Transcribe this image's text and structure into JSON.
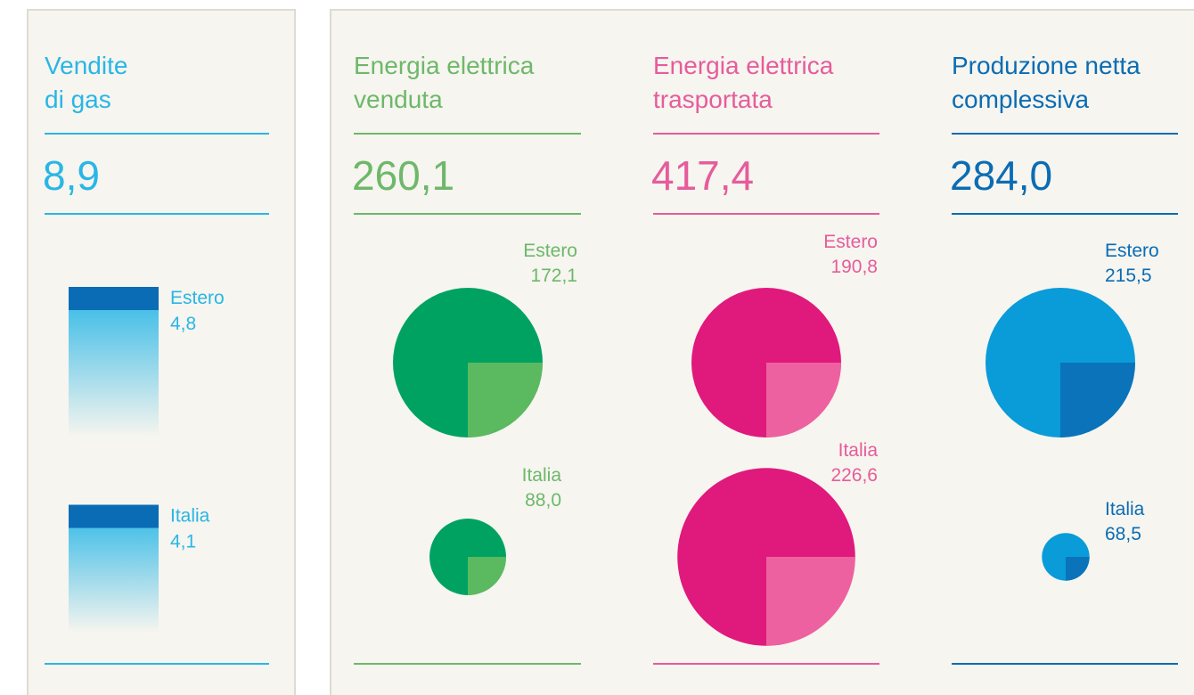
{
  "chart_data": [
    {
      "type": "bar",
      "title": "Vendite\ndi gas",
      "total": 8.9,
      "total_label": "8,9",
      "categories": [
        "Estero",
        "Italia"
      ],
      "values": [
        4.8,
        4.1
      ],
      "value_labels": [
        "4,8",
        "4,1"
      ],
      "color": "#29b6e6",
      "color2": "#0a6cb4",
      "text_color": "#29b6e6",
      "line_color": "#29b6e6"
    },
    {
      "type": "pie",
      "title": "Energia elettrica\nvenduta",
      "total": 260.1,
      "total_label": "260,1",
      "categories": [
        "Estero",
        "Italia"
      ],
      "values": [
        172.1,
        88.0
      ],
      "value_labels": [
        "172,1",
        "88,0"
      ],
      "color": "#00a262",
      "color2": "#6bbd5f",
      "text_color": "#6db86a",
      "line_color": "#6db86a"
    },
    {
      "type": "pie",
      "title": "Energia elettrica\ntrasportata",
      "total": 417.4,
      "total_label": "417,4",
      "categories": [
        "Estero",
        "Italia"
      ],
      "values": [
        190.8,
        226.6
      ],
      "value_labels": [
        "190,8",
        "226,6"
      ],
      "color": "#e0197d",
      "color2": "#ee6fa6",
      "text_color": "#e65c9c",
      "line_color": "#e65c9c"
    },
    {
      "type": "pie",
      "title": "Produzione netta\ncomplessiva",
      "total": 284.0,
      "total_label": "284,0",
      "categories": [
        "Estero",
        "Italia"
      ],
      "values": [
        215.5,
        68.5
      ],
      "value_labels": [
        "215,5",
        "68,5"
      ],
      "color": "#0a9bd9",
      "color2": "#0a6cb4",
      "text_color": "#0a6cb4",
      "line_color": "#0a6cb4"
    }
  ]
}
